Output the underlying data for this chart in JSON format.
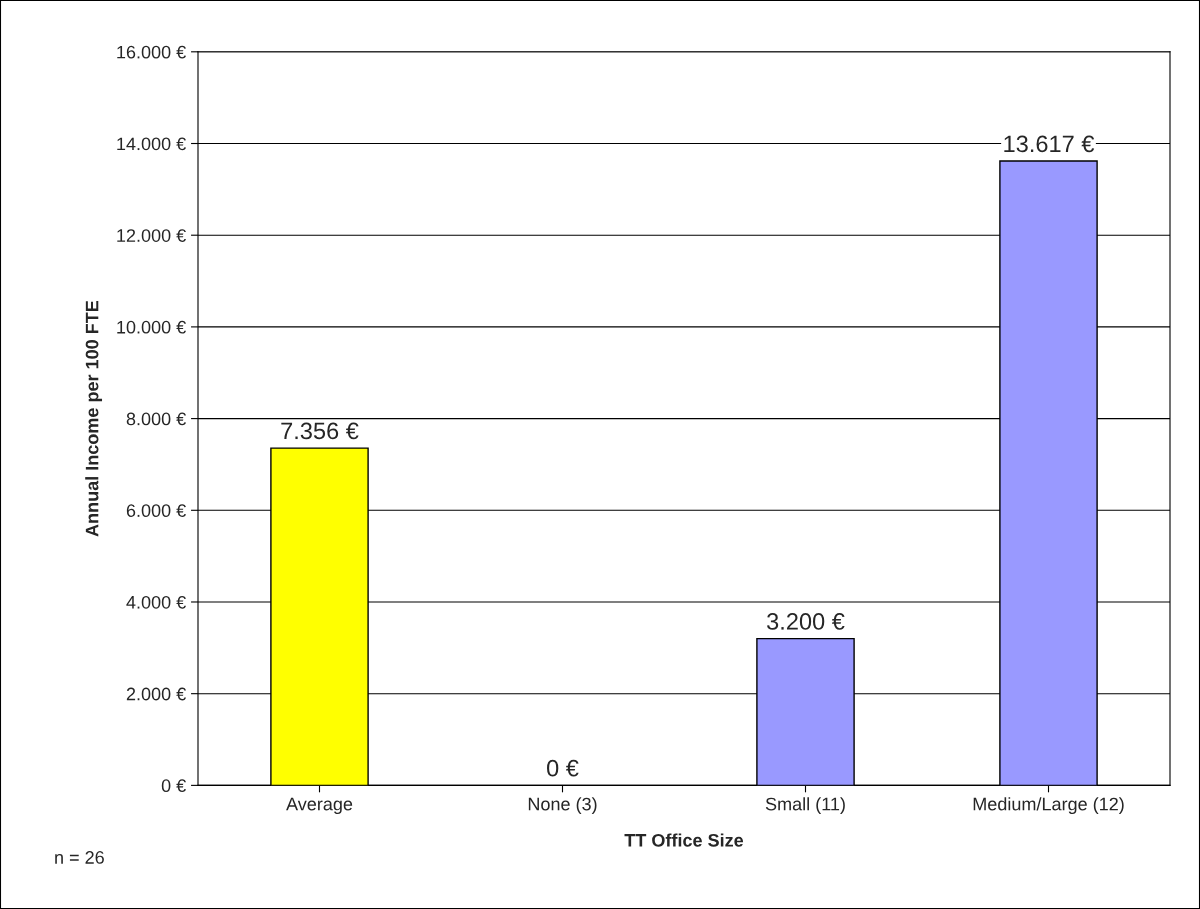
{
  "chart_data": {
    "type": "bar",
    "categories": [
      "Average",
      "None (3)",
      "Small (11)",
      "Medium/Large (12)"
    ],
    "values": [
      7356,
      0,
      3200,
      13617
    ],
    "colors": [
      "#ffff00",
      "#9999ff",
      "#9999ff",
      "#9999ff"
    ],
    "value_labels": [
      "7.356 €",
      "0 €",
      "3.200 €",
      "13.617 €"
    ],
    "xlabel": "TT Office Size",
    "ylabel": "Annual Income per 100 FTE",
    "ylim": [
      0,
      16000
    ],
    "yticks": [
      {
        "value": 0,
        "label": "0 €"
      },
      {
        "value": 2000,
        "label": "2.000 €"
      },
      {
        "value": 4000,
        "label": "4.000 €"
      },
      {
        "value": 6000,
        "label": "6.000 €"
      },
      {
        "value": 8000,
        "label": "8.000 €"
      },
      {
        "value": 10000,
        "label": "10.000 €"
      },
      {
        "value": 12000,
        "label": "12.000 €"
      },
      {
        "value": 14000,
        "label": "14.000 €"
      },
      {
        "value": 16000,
        "label": "16.000 €"
      }
    ],
    "grid": "y",
    "legend": false,
    "annotations": [
      "n = 26"
    ]
  }
}
